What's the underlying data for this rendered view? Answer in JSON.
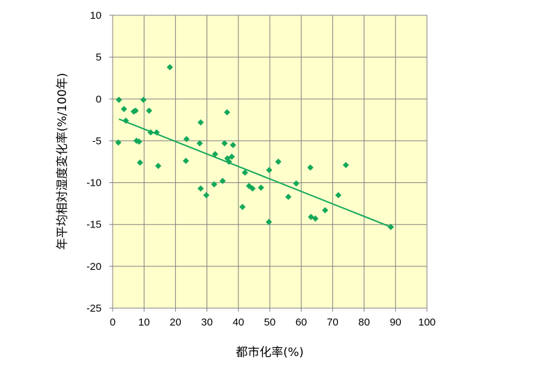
{
  "chart_data": {
    "type": "scatter",
    "xlabel": "都市化率(%)",
    "ylabel": "年平均相対湿度変化率(%/100年)",
    "xlim": [
      0,
      100
    ],
    "ylim": [
      -25,
      10
    ],
    "x_ticks": [
      0,
      10,
      20,
      30,
      40,
      50,
      60,
      70,
      80,
      90,
      100
    ],
    "y_ticks": [
      10,
      5,
      0,
      -5,
      -10,
      -15,
      -20,
      -25
    ],
    "grid": true,
    "legend": "none",
    "colors": {
      "plot_background": "#ffffcc",
      "grid": "#808080",
      "marker": "#14a85a",
      "trendline": "#14a85a"
    },
    "series": [
      {
        "marker": "diamond",
        "points": [
          [
            2.0,
            -0.1
          ],
          [
            1.8,
            -5.2
          ],
          [
            3.6,
            -1.2
          ],
          [
            4.2,
            -2.6
          ],
          [
            6.7,
            -1.5
          ],
          [
            7.3,
            -1.4
          ],
          [
            7.6,
            -5.0
          ],
          [
            8.4,
            -5.1
          ],
          [
            8.7,
            -7.6
          ],
          [
            9.8,
            -0.1
          ],
          [
            11.6,
            -1.4
          ],
          [
            12.1,
            -4.0
          ],
          [
            14.0,
            -4.0
          ],
          [
            14.5,
            -8.0
          ],
          [
            18.2,
            3.8
          ],
          [
            23.3,
            -7.4
          ],
          [
            23.5,
            -4.8
          ],
          [
            27.7,
            -5.3
          ],
          [
            28.0,
            -2.8
          ],
          [
            28.0,
            -10.7
          ],
          [
            29.8,
            -11.5
          ],
          [
            32.3,
            -10.2
          ],
          [
            32.6,
            -6.6
          ],
          [
            35.0,
            -9.8
          ],
          [
            35.6,
            -5.3
          ],
          [
            36.4,
            -1.6
          ],
          [
            36.5,
            -7.1
          ],
          [
            37.0,
            -7.5
          ],
          [
            37.9,
            -6.9
          ],
          [
            38.3,
            -5.5
          ],
          [
            41.3,
            -12.9
          ],
          [
            42.1,
            -8.8
          ],
          [
            43.4,
            -10.4
          ],
          [
            44.5,
            -10.7
          ],
          [
            47.2,
            -10.6
          ],
          [
            49.7,
            -14.7
          ],
          [
            49.8,
            -8.5
          ],
          [
            52.7,
            -7.5
          ],
          [
            55.9,
            -11.7
          ],
          [
            58.4,
            -10.1
          ],
          [
            62.9,
            -8.2
          ],
          [
            63.1,
            -14.1
          ],
          [
            64.5,
            -14.3
          ],
          [
            67.6,
            -13.3
          ],
          [
            71.8,
            -11.5
          ],
          [
            74.2,
            -7.9
          ],
          [
            88.5,
            -15.3
          ]
        ]
      }
    ],
    "trendline": {
      "x": [
        2.0,
        88.5
      ],
      "y": [
        -2.4,
        -15.3
      ]
    }
  }
}
